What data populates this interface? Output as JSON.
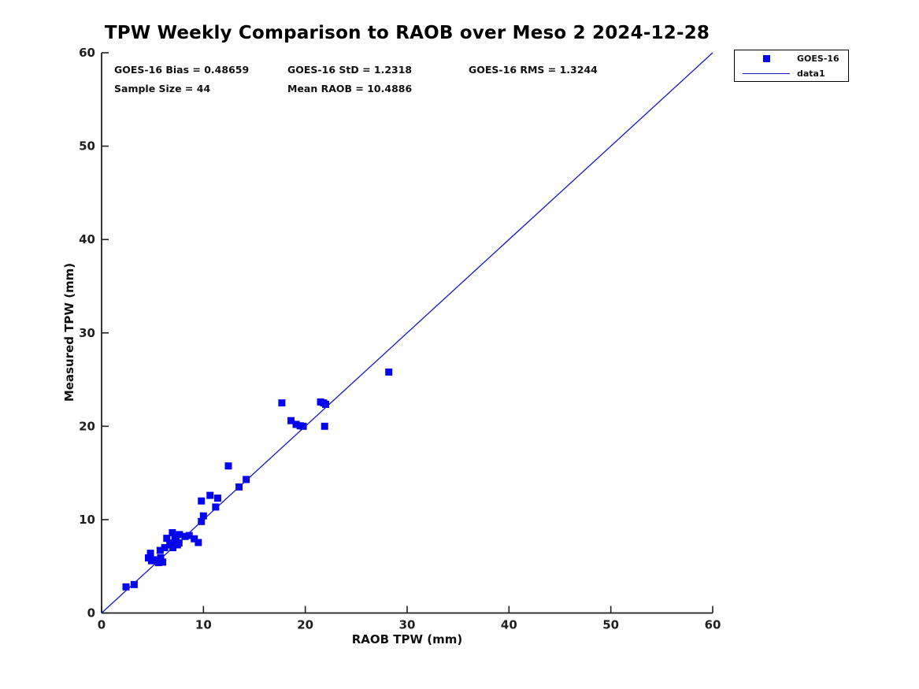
{
  "colors": {
    "marker": "#0404EE",
    "line": "#1414D2",
    "axis": "#1f1f1f",
    "text": "#000000"
  },
  "stats": {
    "bias": "GOES-16 Bias = 0.48659",
    "std": "GOES-16 StD = 1.2318",
    "rms": "GOES-16 RMS = 1.3244",
    "sample_size": "Sample Size = 44",
    "mean_raob": "Mean RAOB = 10.4886"
  },
  "legend": {
    "entries": [
      {
        "label": "GOES-16",
        "swatch": "square-marker"
      },
      {
        "label": "data1",
        "swatch": "line"
      }
    ]
  },
  "chart_data": {
    "type": "scatter",
    "title": "TPW Weekly Comparison to RAOB over Meso 2 2024-12-28",
    "xlabel": "RAOB TPW (mm)",
    "ylabel": "Measured TPW (mm)",
    "xlim": [
      0,
      60
    ],
    "ylim": [
      0,
      60
    ],
    "xticks": [
      0,
      10,
      20,
      30,
      40,
      50,
      60
    ],
    "yticks": [
      0,
      10,
      20,
      30,
      40,
      50,
      60
    ],
    "grid": false,
    "legend_position": "top-right-outside",
    "annotations": [
      "GOES-16 Bias = 0.48659",
      "GOES-16 StD = 1.2318",
      "GOES-16 RMS = 1.3244",
      "Sample Size = 44",
      "Mean RAOB = 10.4886"
    ],
    "series": [
      {
        "name": "GOES-16",
        "type": "scatter",
        "marker": "square",
        "points": [
          [
            2.4,
            2.8
          ],
          [
            3.2,
            3.05
          ],
          [
            4.6,
            5.9
          ],
          [
            4.8,
            6.4
          ],
          [
            4.9,
            5.6
          ],
          [
            5.1,
            5.7
          ],
          [
            5.6,
            5.4
          ],
          [
            5.8,
            5.9
          ],
          [
            5.75,
            6.7
          ],
          [
            6.0,
            5.45
          ],
          [
            6.2,
            7.0
          ],
          [
            6.4,
            8.0
          ],
          [
            6.7,
            7.3
          ],
          [
            6.95,
            8.6
          ],
          [
            6.95,
            7.5
          ],
          [
            7.0,
            7.0
          ],
          [
            7.2,
            8.1
          ],
          [
            7.3,
            7.9
          ],
          [
            7.45,
            7.3
          ],
          [
            7.6,
            7.5
          ],
          [
            7.65,
            8.4
          ],
          [
            8.2,
            8.2
          ],
          [
            8.6,
            8.3
          ],
          [
            9.1,
            7.95
          ],
          [
            9.5,
            7.55
          ],
          [
            9.8,
            9.8
          ],
          [
            10.0,
            10.4
          ],
          [
            9.8,
            12.0
          ],
          [
            10.65,
            12.6
          ],
          [
            11.2,
            11.35
          ],
          [
            11.4,
            12.3
          ],
          [
            12.45,
            15.75
          ],
          [
            13.5,
            13.5
          ],
          [
            14.2,
            14.3
          ],
          [
            17.7,
            22.5
          ],
          [
            18.6,
            20.6
          ],
          [
            19.1,
            20.2
          ],
          [
            19.5,
            20.05
          ],
          [
            19.8,
            20.0
          ],
          [
            21.9,
            20.0
          ],
          [
            21.5,
            22.6
          ],
          [
            21.8,
            22.5
          ],
          [
            22.0,
            22.35
          ],
          [
            28.2,
            25.8
          ]
        ]
      },
      {
        "name": "data1",
        "type": "line",
        "x": [
          0,
          60
        ],
        "y": [
          0,
          60
        ]
      }
    ]
  }
}
